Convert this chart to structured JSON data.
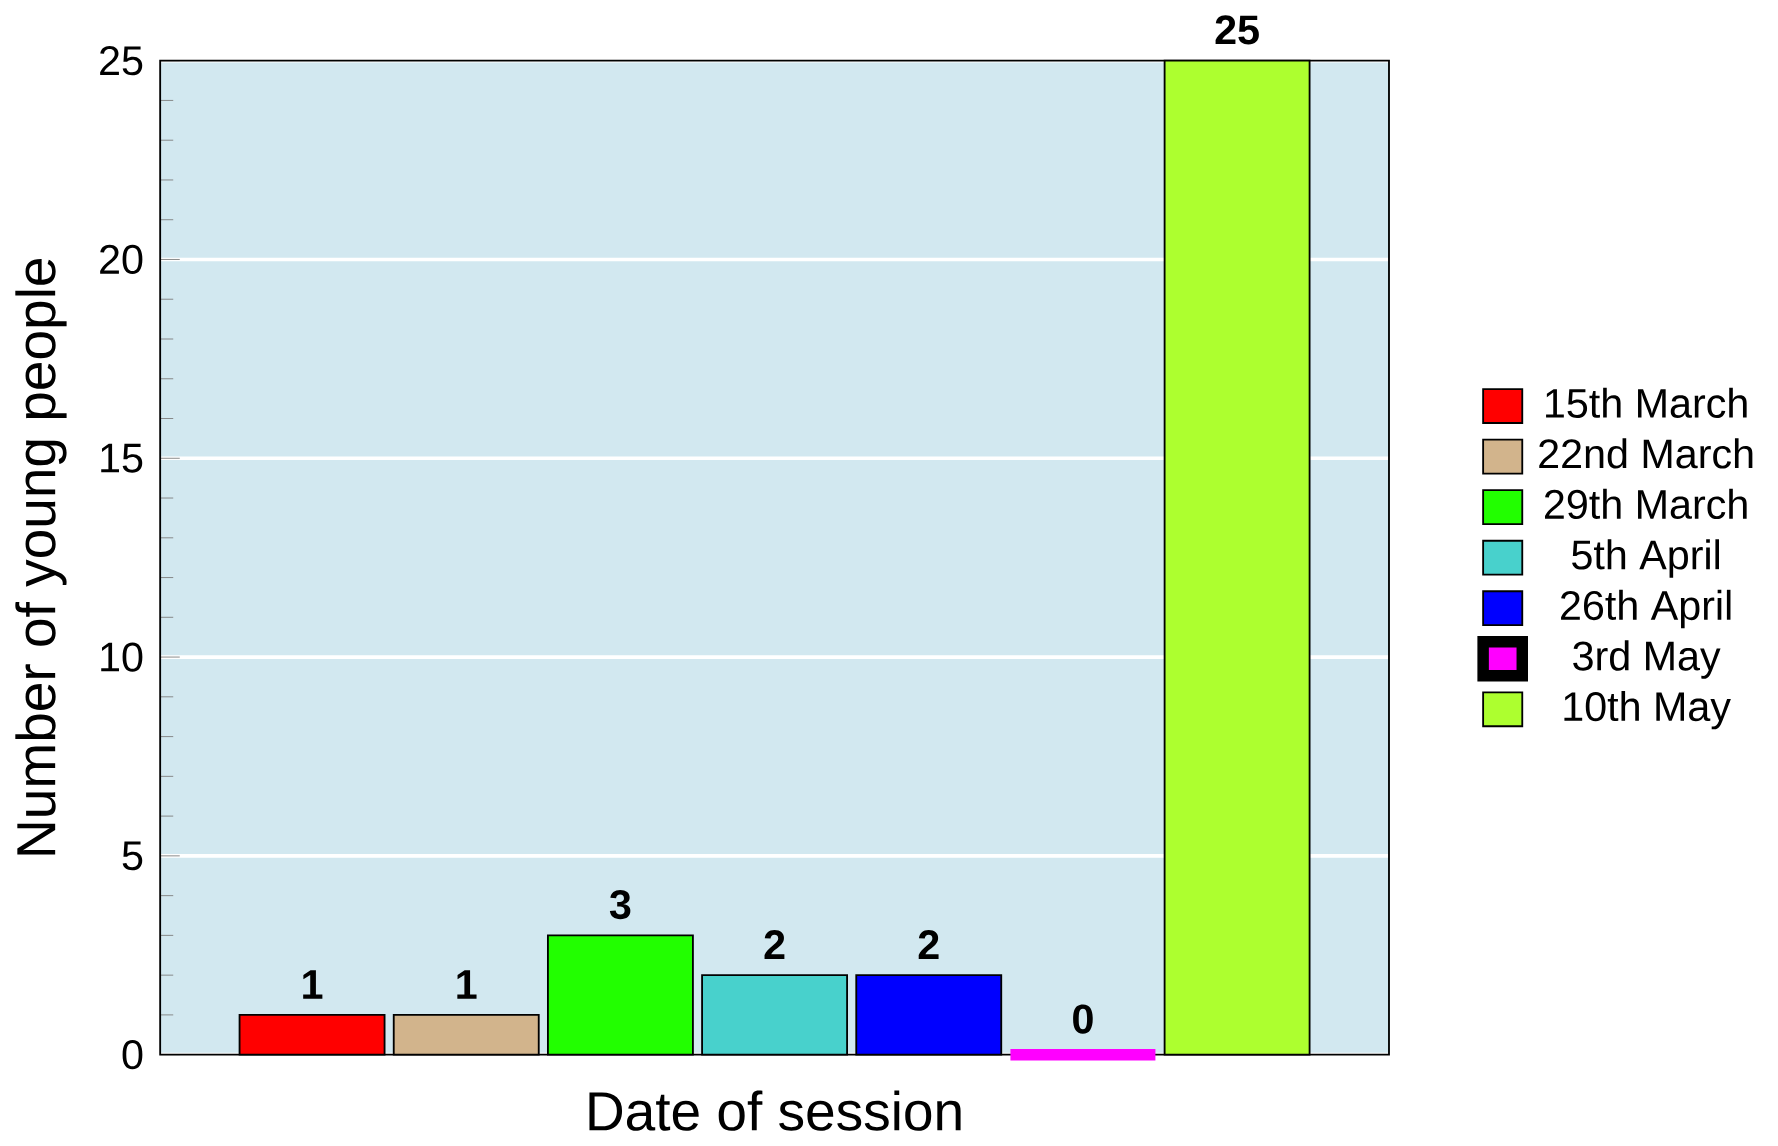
{
  "chart_data": {
    "type": "bar",
    "xlabel": "Date of session",
    "ylabel": "Number of young people",
    "categories": [
      null
    ],
    "series": [
      {
        "name": "15th March",
        "color": "#ff0000",
        "values": [
          1
        ]
      },
      {
        "name": "22nd March",
        "color": "#d2b48c",
        "values": [
          1
        ]
      },
      {
        "name": "29th March",
        "color": "#22ff00",
        "values": [
          3
        ]
      },
      {
        "name": "5th April",
        "color": "#48d1cc",
        "values": [
          2
        ]
      },
      {
        "name": "26th April",
        "color": "#0000ff",
        "values": [
          2
        ]
      },
      {
        "name": "3rd May",
        "color": "#ff00ff",
        "values": [
          0
        ]
      },
      {
        "name": "10th May",
        "color": "#adff2f",
        "values": [
          25
        ]
      }
    ],
    "ylim": [
      0,
      25
    ],
    "yticks": [
      0,
      5,
      10,
      15,
      20,
      25
    ],
    "grid": "y",
    "legend": "right",
    "data_labels": true
  }
}
